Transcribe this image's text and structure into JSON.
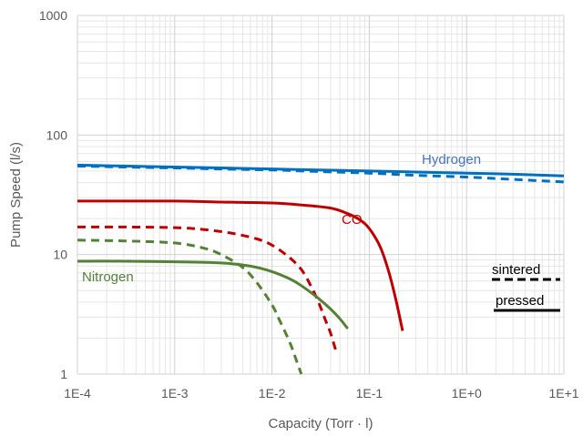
{
  "chart_data": {
    "type": "line",
    "title": "",
    "xlabel": "Capacity (Torr · l)",
    "ylabel": "Pump Speed (l/s)",
    "xscale": "log",
    "yscale": "log",
    "xlim": [
      0.0001,
      10
    ],
    "ylim": [
      1,
      1000
    ],
    "grid": true,
    "x_tick_labels": [
      "1E-4",
      "1E-3",
      "1E-2",
      "1E-1",
      "1E+0",
      "1E+1"
    ],
    "y_tick_labels": [
      "1",
      "10",
      "100",
      "1000"
    ],
    "series_labels": [
      {
        "text": "Hydrogen",
        "color": "#4472C4"
      },
      {
        "text": "CO",
        "color": "#C00000"
      },
      {
        "text": "Nitrogen",
        "color": "#538135"
      }
    ],
    "legend": {
      "placement": "right",
      "entries": [
        {
          "text": "sintered",
          "style": "dashed"
        },
        {
          "text": "pressed",
          "style": "solid"
        }
      ]
    },
    "series": [
      {
        "gas": "Hydrogen",
        "variant": "pressed",
        "color": "#0070C0",
        "style": "solid",
        "x": [
          0.0001,
          0.0003,
          0.001,
          0.003,
          0.01,
          0.03,
          0.1,
          0.3,
          1,
          3,
          10
        ],
        "y": [
          56,
          55,
          54,
          53,
          52,
          51,
          50,
          49,
          48,
          47,
          45.5
        ]
      },
      {
        "gas": "Hydrogen",
        "variant": "sintered",
        "color": "#0070C0",
        "style": "dashed",
        "x": [
          0.0001,
          0.0003,
          0.001,
          0.003,
          0.01,
          0.03,
          0.1,
          0.3,
          1,
          3,
          10
        ],
        "y": [
          55,
          54,
          53,
          52,
          51,
          49.5,
          48,
          46,
          44.5,
          42.5,
          40.5
        ]
      },
      {
        "gas": "CO",
        "variant": "pressed",
        "color": "#C00000",
        "style": "solid",
        "x": [
          0.0001,
          0.001,
          0.003,
          0.01,
          0.02,
          0.04,
          0.06,
          0.08,
          0.1,
          0.13,
          0.16,
          0.19,
          0.22
        ],
        "y": [
          28,
          28,
          27.5,
          27,
          26,
          24.5,
          22,
          19.5,
          16.5,
          11.5,
          7,
          4,
          2.3
        ]
      },
      {
        "gas": "CO",
        "variant": "sintered",
        "color": "#C00000",
        "style": "dashed",
        "x": [
          0.0001,
          0.0003,
          0.001,
          0.002,
          0.004,
          0.007,
          0.01,
          0.015,
          0.02,
          0.025,
          0.03,
          0.035,
          0.04,
          0.045
        ],
        "y": [
          17,
          17,
          16.8,
          16.2,
          15,
          13.5,
          12,
          9.5,
          7.5,
          5.5,
          4,
          2.9,
          2.2,
          1.6
        ]
      },
      {
        "gas": "Nitrogen",
        "variant": "pressed",
        "color": "#548235",
        "style": "solid",
        "x": [
          0.0001,
          0.0003,
          0.001,
          0.003,
          0.006,
          0.01,
          0.015,
          0.02,
          0.03,
          0.04,
          0.05,
          0.06
        ],
        "y": [
          8.8,
          8.8,
          8.7,
          8.5,
          8.0,
          7.2,
          6.3,
          5.5,
          4.3,
          3.5,
          2.9,
          2.4
        ]
      },
      {
        "gas": "Nitrogen",
        "variant": "sintered",
        "color": "#548235",
        "style": "dashed",
        "x": [
          0.0001,
          0.0003,
          0.001,
          0.002,
          0.003,
          0.005,
          0.007,
          0.01,
          0.012,
          0.015,
          0.017,
          0.02
        ],
        "y": [
          13.2,
          13,
          12.5,
          11.3,
          10,
          7.8,
          5.8,
          3.8,
          2.8,
          1.9,
          1.45,
          1.0
        ]
      }
    ]
  }
}
